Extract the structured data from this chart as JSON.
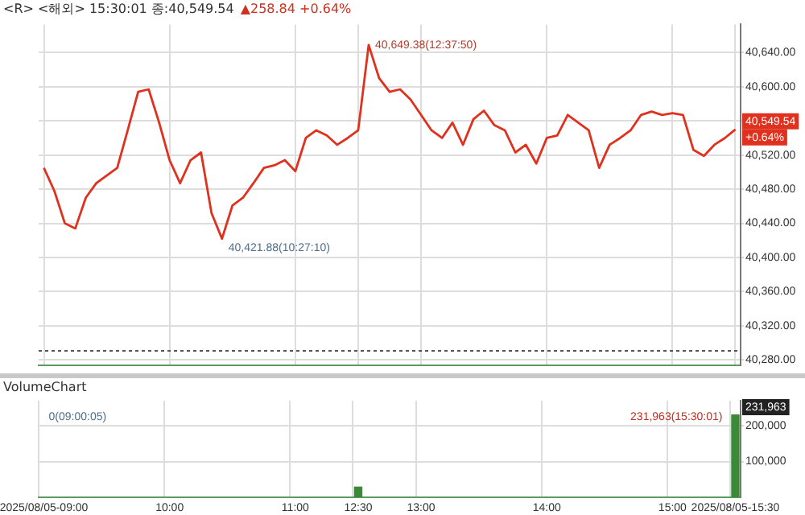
{
  "chart_data": [
    {
      "type": "line",
      "title": "<R> <해외> 15:30:01 종:40,549.54",
      "subtitle": "▲258.84 +0.64%",
      "categories": [
        null,
        null,
        null,
        null,
        null,
        null,
        null,
        null,
        null,
        null,
        null,
        null,
        null,
        null,
        null,
        null,
        null,
        null,
        null,
        null,
        null,
        null,
        null,
        null,
        null,
        null,
        null,
        null,
        null,
        null,
        null,
        null,
        null,
        null,
        null,
        null,
        null,
        null,
        null,
        null,
        null,
        null,
        null,
        null,
        null,
        null,
        null,
        null,
        null,
        null,
        null,
        null,
        null,
        null,
        null,
        null,
        null,
        null,
        null,
        null,
        null,
        null,
        null,
        null,
        null,
        null,
        null
      ],
      "series": [
        {
          "color": "#e0301e",
          "values": [
            40505,
            40478,
            40440,
            40434,
            40470,
            40487,
            40496,
            40505,
            40549,
            40594,
            40597,
            40558,
            40514,
            40487,
            40514,
            40523,
            40452,
            40422,
            40461,
            40470,
            40487,
            40505,
            40508,
            40514,
            40501,
            40540,
            40549,
            40543,
            40532,
            40540,
            40549,
            40649,
            40610,
            40594,
            40597,
            40585,
            40567,
            40549,
            40540,
            40558,
            40532,
            40562,
            40572,
            40555,
            40549,
            40523,
            40532,
            40510,
            40540,
            40543,
            40567,
            40558,
            40549,
            40505,
            40532,
            40540,
            40549,
            40567,
            40571,
            40567,
            40569,
            40567,
            40526,
            40519,
            40532,
            40540,
            40550
          ]
        }
      ],
      "ylim": [
        40274,
        40673
      ],
      "yticks": [
        {
          "value": 40280,
          "label": "40,280.00"
        },
        {
          "value": 40320,
          "label": "40,320.00"
        },
        {
          "value": 40360,
          "label": "40,360.00"
        },
        {
          "value": 40400,
          "label": "40,400.00"
        },
        {
          "value": 40440,
          "label": "40,440.00"
        },
        {
          "value": 40480,
          "label": "40,480.00"
        },
        {
          "value": 40520,
          "label": "40,520.00"
        },
        {
          "value": 40560,
          "label": null
        },
        {
          "value": 40600,
          "label": "40,600.00"
        },
        {
          "value": 40640,
          "label": "40,640.00"
        }
      ],
      "grid": true,
      "legend": false,
      "tick_labels": "y",
      "ref_lines": [
        {
          "axis": "y",
          "value": 40290.7,
          "color": "#555555",
          "line_style": "dotted"
        }
      ],
      "annotations": [
        "40,649.38(12:37:50)",
        "40,421.88(10:27:10)",
        "40,549.54",
        "+0.64%"
      ]
    },
    {
      "type": "bar",
      "title": "VolumeChart",
      "categories": [
        "2025/08/05-09:00",
        null,
        null,
        null,
        null,
        null,
        null,
        null,
        null,
        null,
        null,
        null,
        "10:00",
        null,
        null,
        null,
        null,
        null,
        null,
        null,
        null,
        null,
        null,
        null,
        "11:00",
        null,
        null,
        null,
        null,
        null,
        "12:30",
        null,
        null,
        null,
        null,
        null,
        "13:00",
        null,
        null,
        null,
        null,
        null,
        null,
        null,
        null,
        null,
        null,
        null,
        "14:00",
        null,
        null,
        null,
        null,
        null,
        null,
        null,
        null,
        null,
        null,
        null,
        "15:00",
        null,
        null,
        null,
        null,
        null,
        "2025/08/05-15:30"
      ],
      "series": [
        {
          "color": "#3a8a3a",
          "values": [
            0,
            0,
            0,
            0,
            0,
            0,
            0,
            0,
            0,
            0,
            0,
            0,
            0,
            0,
            0,
            0,
            0,
            0,
            0,
            0,
            0,
            0,
            0,
            0,
            0,
            0,
            0,
            0,
            0,
            0,
            30000,
            0,
            0,
            0,
            0,
            0,
            0,
            0,
            0,
            0,
            0,
            0,
            0,
            0,
            0,
            0,
            0,
            0,
            0,
            0,
            0,
            0,
            0,
            0,
            0,
            0,
            0,
            0,
            0,
            0,
            0,
            0,
            0,
            0,
            0,
            0,
            232000
          ]
        }
      ],
      "ylim": [
        0,
        270000
      ],
      "yticks": [
        {
          "value": 100000,
          "label": "100,000"
        },
        {
          "value": 200000,
          "label": "200,000"
        }
      ],
      "grid": true,
      "legend": false,
      "annotations": [
        "0(09:00:05)",
        "231,963(15:30:01)",
        "231,963"
      ]
    }
  ]
}
